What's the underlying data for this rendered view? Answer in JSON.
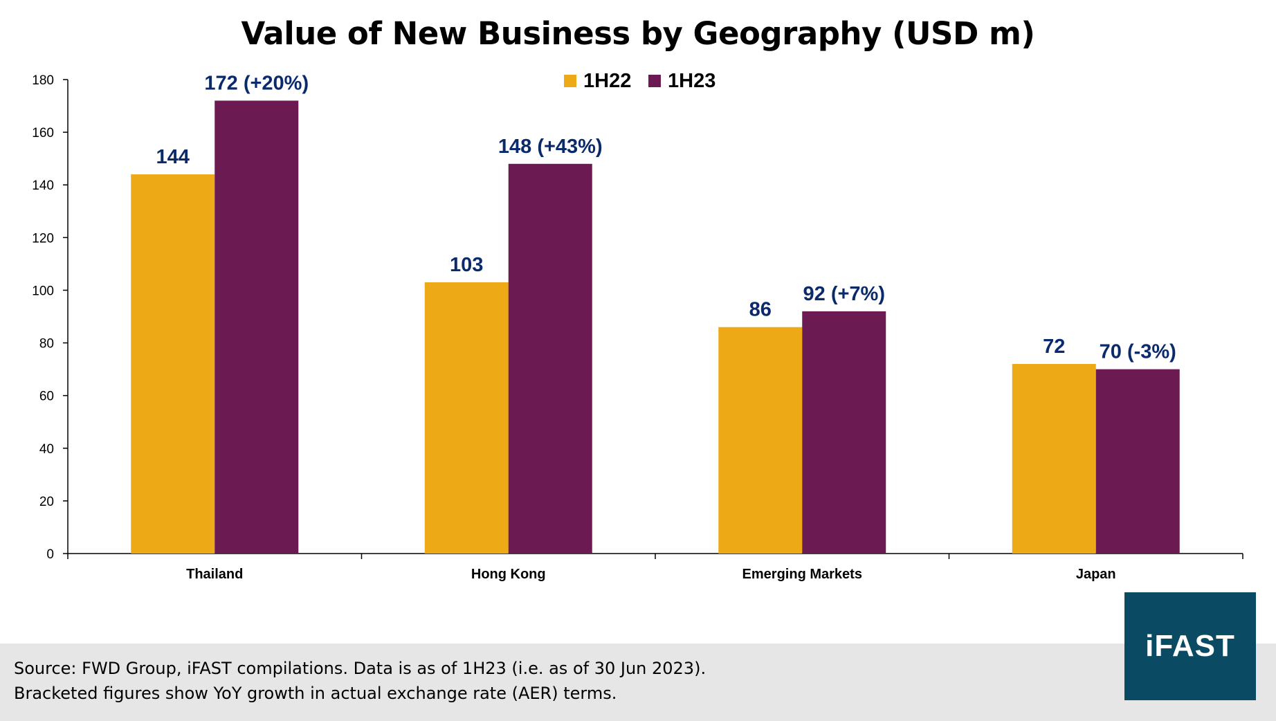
{
  "chart_data": {
    "type": "bar",
    "title": "Value of New Business by Geography (USD m)",
    "categories": [
      "Thailand",
      "Hong Kong",
      "Emerging Markets",
      "Japan"
    ],
    "series": [
      {
        "name": "1H22",
        "color": "#EDAA16",
        "values": [
          144,
          103,
          86,
          72
        ],
        "labels": [
          "144",
          "103",
          "86",
          "72"
        ]
      },
      {
        "name": "1H23",
        "color": "#6B1B51",
        "values": [
          172,
          148,
          92,
          70
        ],
        "labels": [
          "172 (+20%)",
          "148 (+43%)",
          "92 (+7%)",
          "70 (-3%)"
        ]
      }
    ],
    "ylim": [
      0,
      180
    ],
    "yticks": [
      0,
      20,
      40,
      60,
      80,
      100,
      120,
      140,
      160,
      180
    ],
    "xlabel": "",
    "ylabel": "",
    "grid": false,
    "legend_position": "top-center",
    "label_color": "#0B2A6B"
  },
  "footer": {
    "source": "Source:  FWD Group, iFAST compilations. Data is as of 1H23 (i.e. as of 30 Jun 2023).",
    "note": "Bracketed figures show YoY growth in actual exchange rate (AER) terms."
  },
  "logo": {
    "text": "iFAST",
    "color": "#0B4A63"
  }
}
